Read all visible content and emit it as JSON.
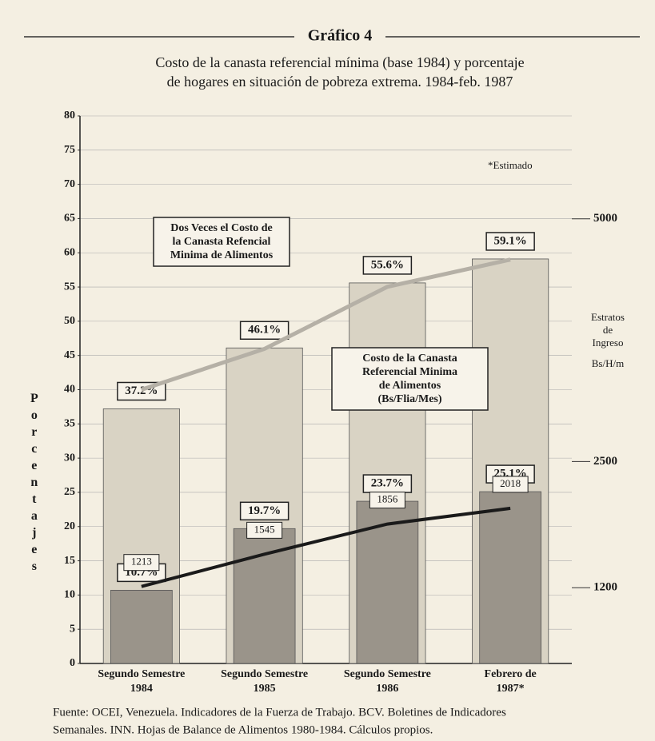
{
  "chart_data": {
    "type": "bar",
    "title": "Gráfico 4",
    "subtitle": [
      "Costo de la canasta referencial mínima (base 1984) y porcentaje",
      "de hogares en situación de pobreza extrema. 1984-feb. 1987"
    ],
    "y_label": "Porcentajes",
    "y2_label": "Bs/H/m",
    "y2_title": [
      "Estratos",
      "de",
      "Ingreso"
    ],
    "note": "*Estimado",
    "categories": [
      [
        "Segundo Semestre",
        "1984"
      ],
      [
        "Segundo Semestre",
        "1985"
      ],
      [
        "Segundo Semestre",
        "1986"
      ],
      [
        "Febrero de",
        "1987*"
      ]
    ],
    "series": [
      {
        "color": "#d9d3c4",
        "values": [
          37.2,
          46.1,
          55.6,
          59.1
        ],
        "value_labels": [
          "37.2%",
          "46.1%",
          "55.6%",
          "59.1%"
        ]
      },
      {
        "color": "#9a948a",
        "values": [
          10.7,
          19.7,
          23.7,
          25.1
        ],
        "value_labels": [
          "10.7%",
          "19.7%",
          "23.7%",
          "25.1%"
        ]
      },
      {
        "type": "line",
        "axis": "y2",
        "color": "#1a1a1a",
        "values": [
          1213,
          1545,
          1856,
          2018
        ]
      },
      {
        "type": "line",
        "axis": "y2",
        "color": "#b5b0a6",
        "values": [
          3240,
          3660,
          4300,
          4580
        ]
      }
    ],
    "annotations": [
      [
        "Dos Veces el Costo de",
        "la Canasta Refencial",
        "Minima de Alimentos"
      ],
      [
        "Costo de la Canasta",
        "Referencial Minima",
        "de Alimentos",
        "(Bs/Flia/Mes)"
      ]
    ],
    "ylim": [
      0,
      80
    ],
    "yticks": [
      0,
      5,
      10,
      15,
      20,
      25,
      30,
      35,
      40,
      45,
      50,
      55,
      60,
      65,
      70,
      75,
      80
    ],
    "y2lim": [
      420,
      6060
    ],
    "y2ticks": [
      1200,
      2500,
      5000
    ],
    "grid": true,
    "source": [
      "Fuente: OCEI, Venezuela. Indicadores de la Fuerza de Trabajo. BCV. Boletines de Indicadores",
      "Semanales. INN. Hojas de Balance de Alimentos 1980-1984. Cálculos propios."
    ]
  }
}
